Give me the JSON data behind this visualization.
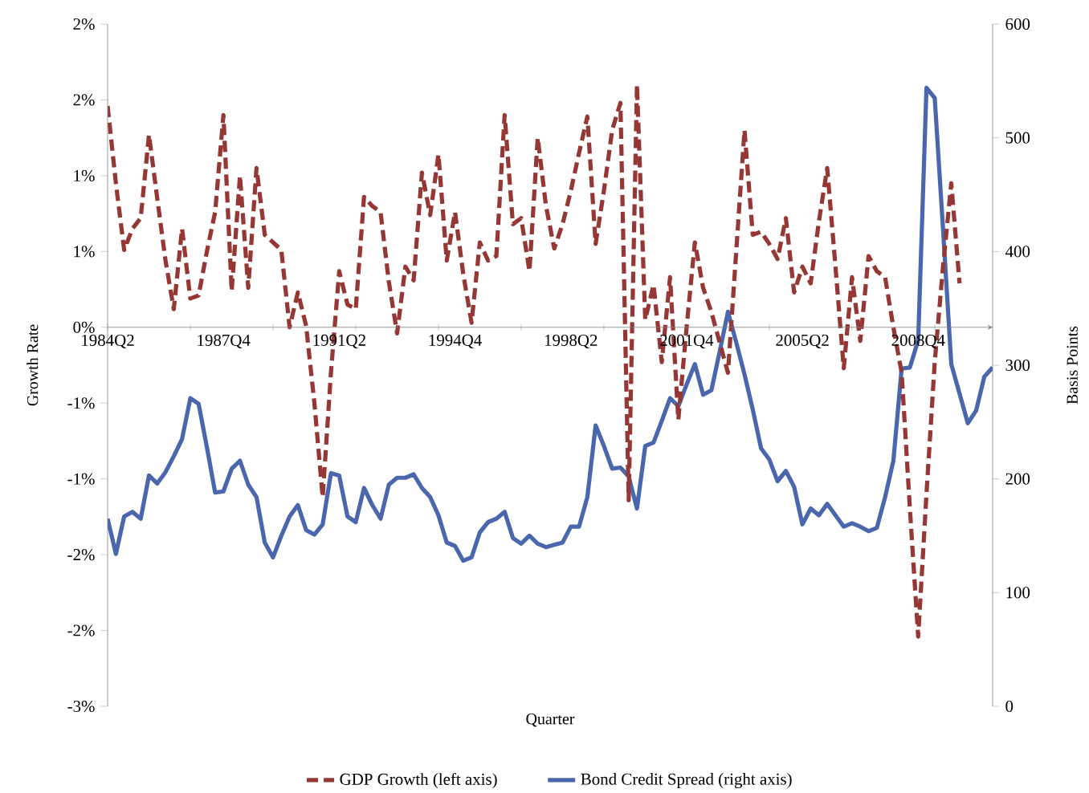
{
  "chart_data": {
    "type": "line",
    "xlabel": "Quarter",
    "ylabel": "Growth Rate",
    "y2label": "Basis Points",
    "legend": "bottom",
    "marker": "none",
    "categories": [
      "1984Q2",
      null,
      null,
      null,
      null,
      null,
      null,
      null,
      null,
      null,
      null,
      null,
      null,
      null,
      "1987Q4",
      null,
      null,
      null,
      null,
      null,
      null,
      null,
      null,
      null,
      null,
      null,
      null,
      null,
      "1991Q2",
      null,
      null,
      null,
      null,
      null,
      null,
      null,
      null,
      null,
      null,
      null,
      null,
      null,
      "1994Q4",
      null,
      null,
      null,
      null,
      null,
      null,
      null,
      null,
      null,
      null,
      null,
      null,
      null,
      "1998Q2",
      null,
      null,
      null,
      null,
      null,
      null,
      null,
      null,
      null,
      null,
      null,
      null,
      null,
      "2001Q4",
      null,
      null,
      null,
      null,
      null,
      null,
      null,
      null,
      null,
      null,
      null,
      null,
      null,
      "2005Q2",
      null,
      null,
      null,
      null,
      null,
      null,
      null,
      null,
      null,
      null,
      null,
      null,
      null,
      "2008Q4",
      null,
      null,
      null,
      null,
      null,
      null,
      null,
      null,
      null
    ],
    "ylim": [
      -2.5,
      2.0
    ],
    "yticks": [
      {
        "value": -2.5,
        "label": "-3%"
      },
      {
        "value": -2.0,
        "label": "-2%"
      },
      {
        "value": -1.5,
        "label": "-2%"
      },
      {
        "value": -1.0,
        "label": "-1%"
      },
      {
        "value": -0.5,
        "label": "-1%"
      },
      {
        "value": 0,
        "label": "0%"
      },
      {
        "value": 0.5,
        "label": "1%"
      },
      {
        "value": 1.0,
        "label": "1%"
      },
      {
        "value": 1.5,
        "label": "2%"
      },
      {
        "value": 2.0,
        "label": "2%"
      }
    ],
    "y2lim": [
      0,
      600
    ],
    "y2ticks": [
      0,
      100,
      200,
      300,
      400,
      500,
      600
    ],
    "series": [
      {
        "name": "GDP Growth (left axis)",
        "color": "#953735",
        "line_style": "dashed",
        "values": [
          1.46,
          0.95,
          0.51,
          0.65,
          0.72,
          1.27,
          0.85,
          0.44,
          0.12,
          0.65,
          0.19,
          0.21,
          0.5,
          0.76,
          1.4,
          0.24,
          1.0,
          0.26,
          1.05,
          0.61,
          0.56,
          0.51,
          0.0,
          0.23,
          0.01,
          -0.5,
          -1.12,
          -0.3,
          0.37,
          0.15,
          0.12,
          0.86,
          0.8,
          0.76,
          0.3,
          -0.04,
          0.4,
          0.31,
          1.02,
          0.74,
          1.14,
          0.44,
          0.76,
          0.35,
          0.03,
          0.56,
          0.44,
          0.47,
          1.4,
          0.68,
          0.72,
          0.37,
          1.25,
          0.8,
          0.52,
          0.68,
          0.9,
          1.15,
          1.39,
          0.55,
          0.9,
          1.3,
          1.48,
          -1.14,
          1.6,
          0.05,
          0.28,
          -0.23,
          0.33,
          -0.61,
          0.0,
          0.56,
          0.26,
          0.1,
          -0.1,
          -0.3,
          0.5,
          1.3,
          0.61,
          0.63,
          0.55,
          0.45,
          0.72,
          0.23,
          0.4,
          0.29,
          0.7,
          1.05,
          0.4,
          -0.27,
          0.33,
          -0.09,
          0.47,
          0.37,
          0.33,
          0.0,
          -0.3,
          -1.2,
          -2.04,
          -1.1,
          -0.23,
          0.4,
          0.95,
          0.29,
          null,
          null,
          null,
          null
        ]
      },
      {
        "name": "Bond Credit Spread (right axis)",
        "color": "#4a66ac",
        "line_style": "solid",
        "axis": "y2",
        "values": [
          165,
          134,
          167,
          171,
          165,
          203,
          196,
          206,
          220,
          235,
          271,
          266,
          228,
          188,
          189,
          209,
          216,
          195,
          184,
          144,
          131,
          150,
          167,
          177,
          155,
          151,
          160,
          205,
          203,
          167,
          162,
          192,
          177,
          165,
          195,
          201,
          201,
          204,
          192,
          184,
          168,
          144,
          141,
          128,
          131,
          153,
          162,
          165,
          171,
          148,
          143,
          150,
          143,
          140,
          142,
          144,
          158,
          158,
          184,
          247,
          229,
          209,
          210,
          202,
          174,
          229,
          232,
          251,
          271,
          264,
          283,
          301,
          274,
          278,
          312,
          347,
          320,
          292,
          261,
          227,
          217,
          198,
          207,
          193,
          160,
          174,
          168,
          178,
          168,
          158,
          161,
          158,
          154,
          157,
          184,
          216,
          297,
          298,
          322,
          544,
          535,
          420,
          301,
          275,
          249,
          260,
          290,
          298
        ]
      }
    ]
  }
}
